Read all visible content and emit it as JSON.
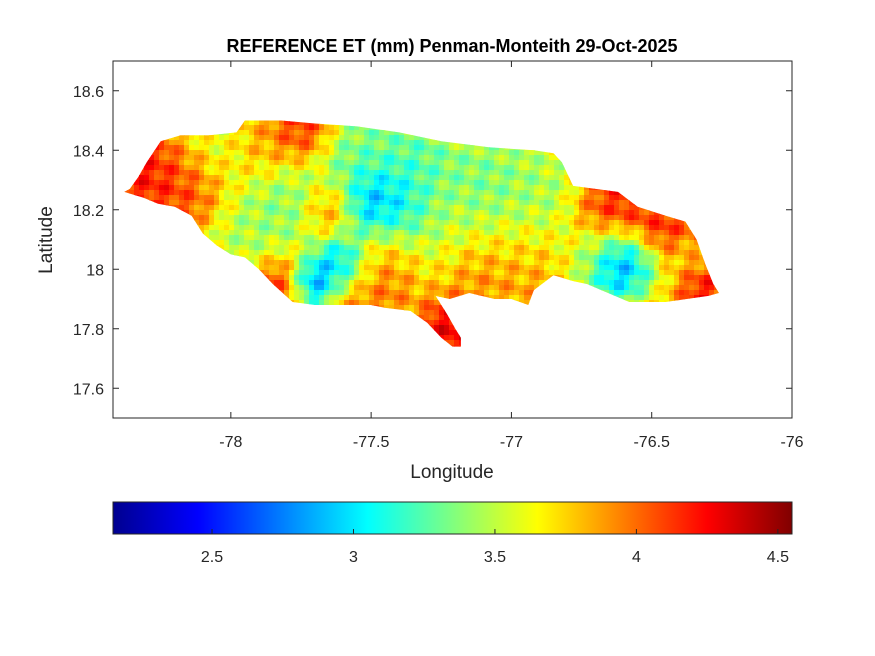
{
  "chart_data": {
    "type": "heatmap",
    "title": "REFERENCE ET (mm) Penman-Monteith 29-Oct-2025",
    "xlabel": "Longitude",
    "ylabel": "Latitude",
    "xlim": [
      -78.42,
      -76.0
    ],
    "ylim": [
      17.5,
      18.7
    ],
    "xticks": [
      -78,
      -77.5,
      -77,
      -76.5,
      -76
    ],
    "xtick_labels": [
      "-78",
      "-77.5",
      "-77",
      "-76.5",
      "-76"
    ],
    "yticks": [
      17.6,
      17.8,
      18,
      18.2,
      18.4,
      18.6
    ],
    "ytick_labels": [
      "17.6",
      "17.8",
      "18",
      "18.2",
      "18.4",
      "18.6"
    ],
    "colormap": "jet",
    "colorbar": {
      "location": "bottom",
      "range": [
        2.15,
        4.55
      ],
      "ticks": [
        2.5,
        3,
        3.5,
        4,
        4.5
      ],
      "tick_labels": [
        "2.5",
        "3",
        "3.5",
        "4",
        "4.5"
      ]
    },
    "grid": false,
    "region_outline_lonlat": [
      [
        -78.36,
        18.27
      ],
      [
        -78.33,
        18.31
      ],
      [
        -78.3,
        18.36
      ],
      [
        -78.25,
        18.43
      ],
      [
        -78.18,
        18.45
      ],
      [
        -78.08,
        18.45
      ],
      [
        -77.98,
        18.46
      ],
      [
        -77.95,
        18.5
      ],
      [
        -77.82,
        18.5
      ],
      [
        -77.7,
        18.49
      ],
      [
        -77.55,
        18.48
      ],
      [
        -77.4,
        18.46
      ],
      [
        -77.25,
        18.43
      ],
      [
        -77.08,
        18.41
      ],
      [
        -76.92,
        18.4
      ],
      [
        -76.85,
        18.39
      ],
      [
        -76.82,
        18.36
      ],
      [
        -76.78,
        18.28
      ],
      [
        -76.7,
        18.27
      ],
      [
        -76.62,
        18.26
      ],
      [
        -76.55,
        18.21
      ],
      [
        -76.45,
        18.18
      ],
      [
        -76.38,
        18.16
      ],
      [
        -76.34,
        18.1
      ],
      [
        -76.31,
        18.02
      ],
      [
        -76.28,
        17.95
      ],
      [
        -76.26,
        17.92
      ],
      [
        -76.3,
        17.91
      ],
      [
        -76.45,
        17.89
      ],
      [
        -76.58,
        17.89
      ],
      [
        -76.68,
        17.93
      ],
      [
        -76.73,
        17.95
      ],
      [
        -76.78,
        17.96
      ],
      [
        -76.85,
        17.98
      ],
      [
        -76.92,
        17.93
      ],
      [
        -76.94,
        17.88
      ],
      [
        -77.0,
        17.9
      ],
      [
        -77.06,
        17.9
      ],
      [
        -77.15,
        17.92
      ],
      [
        -77.22,
        17.9
      ],
      [
        -77.27,
        17.91
      ],
      [
        -77.23,
        17.85
      ],
      [
        -77.2,
        17.8
      ],
      [
        -77.18,
        17.77
      ],
      [
        -77.18,
        17.74
      ],
      [
        -77.21,
        17.74
      ],
      [
        -77.25,
        17.77
      ],
      [
        -77.3,
        17.82
      ],
      [
        -77.36,
        17.86
      ],
      [
        -77.45,
        17.87
      ],
      [
        -77.5,
        17.88
      ],
      [
        -77.6,
        17.88
      ],
      [
        -77.7,
        17.88
      ],
      [
        -77.78,
        17.89
      ],
      [
        -77.85,
        17.95
      ],
      [
        -77.9,
        18.0
      ],
      [
        -77.95,
        18.04
      ],
      [
        -78.0,
        18.05
      ],
      [
        -78.05,
        18.08
      ],
      [
        -78.1,
        18.12
      ],
      [
        -78.14,
        18.18
      ],
      [
        -78.2,
        18.21
      ],
      [
        -78.26,
        18.22
      ],
      [
        -78.31,
        18.24
      ],
      [
        -78.38,
        18.26
      ]
    ],
    "field_features": [
      {
        "lon": -78.3,
        "lat": 18.33,
        "value": 4.35,
        "spread": 0.1
      },
      {
        "lon": -78.15,
        "lat": 18.28,
        "value": 4.2,
        "spread": 0.08
      },
      {
        "lon": -78.05,
        "lat": 18.4,
        "value": 3.45,
        "spread": 0.1
      },
      {
        "lon": -77.9,
        "lat": 18.42,
        "value": 3.95,
        "spread": 0.08
      },
      {
        "lon": -77.75,
        "lat": 18.47,
        "value": 4.3,
        "spread": 0.07
      },
      {
        "lon": -77.8,
        "lat": 18.22,
        "value": 3.25,
        "spread": 0.1
      },
      {
        "lon": -77.95,
        "lat": 18.1,
        "value": 3.4,
        "spread": 0.08
      },
      {
        "lon": -77.82,
        "lat": 17.93,
        "value": 4.4,
        "spread": 0.07
      },
      {
        "lon": -77.72,
        "lat": 17.95,
        "value": 2.3,
        "spread": 0.05
      },
      {
        "lon": -77.6,
        "lat": 18.02,
        "value": 2.55,
        "spread": 0.06
      },
      {
        "lon": -77.65,
        "lat": 18.2,
        "value": 4.1,
        "spread": 0.06
      },
      {
        "lon": -77.5,
        "lat": 18.22,
        "value": 2.6,
        "spread": 0.07
      },
      {
        "lon": -77.4,
        "lat": 18.2,
        "value": 2.8,
        "spread": 0.08
      },
      {
        "lon": -77.55,
        "lat": 18.38,
        "value": 3.2,
        "spread": 0.09
      },
      {
        "lon": -77.35,
        "lat": 18.35,
        "value": 3.1,
        "spread": 0.09
      },
      {
        "lon": -77.45,
        "lat": 18.05,
        "value": 3.9,
        "spread": 0.08
      },
      {
        "lon": -77.5,
        "lat": 17.92,
        "value": 4.05,
        "spread": 0.08
      },
      {
        "lon": -77.22,
        "lat": 17.8,
        "value": 4.45,
        "spread": 0.06
      },
      {
        "lon": -77.25,
        "lat": 18.15,
        "value": 3.5,
        "spread": 0.1
      },
      {
        "lon": -77.1,
        "lat": 18.28,
        "value": 3.2,
        "spread": 0.1
      },
      {
        "lon": -77.0,
        "lat": 18.1,
        "value": 3.55,
        "spread": 0.1
      },
      {
        "lon": -76.95,
        "lat": 18.0,
        "value": 3.95,
        "spread": 0.09
      },
      {
        "lon": -76.9,
        "lat": 18.25,
        "value": 3.35,
        "spread": 0.1
      },
      {
        "lon": -77.1,
        "lat": 17.98,
        "value": 4.0,
        "spread": 0.08
      },
      {
        "lon": -76.72,
        "lat": 18.05,
        "value": 3.5,
        "spread": 0.08
      },
      {
        "lon": -76.62,
        "lat": 18.02,
        "value": 2.4,
        "spread": 0.07
      },
      {
        "lon": -76.55,
        "lat": 17.97,
        "value": 2.6,
        "spread": 0.06
      },
      {
        "lon": -76.65,
        "lat": 18.2,
        "value": 4.35,
        "spread": 0.08
      },
      {
        "lon": -76.45,
        "lat": 18.13,
        "value": 4.3,
        "spread": 0.08
      },
      {
        "lon": -76.38,
        "lat": 18.03,
        "value": 3.6,
        "spread": 0.06
      },
      {
        "lon": -76.33,
        "lat": 17.95,
        "value": 4.45,
        "spread": 0.05
      },
      {
        "lon": -76.5,
        "lat": 17.92,
        "value": 4.0,
        "spread": 0.07
      }
    ],
    "background_value": 3.75
  }
}
